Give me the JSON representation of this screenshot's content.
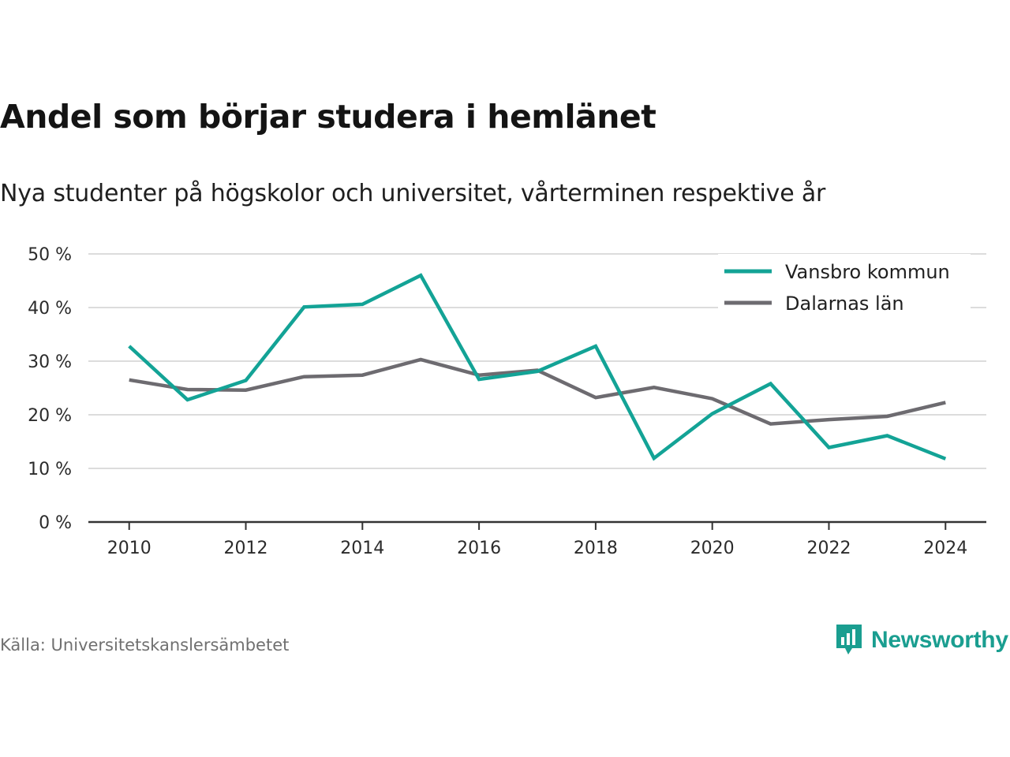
{
  "header": {
    "title": "Andel som börjar studera i hemlänet",
    "subtitle": "Nya studenter på högskolor och universitet, vårterminen respektive år"
  },
  "footer": {
    "source": "Källa: Universitetskanslersämbetet",
    "brand": "Newsworthy"
  },
  "colors": {
    "vansbro": "#13a396",
    "dalarna": "#6d6b70",
    "grid": "#dcdcdc",
    "axis": "#333333",
    "brand": "#1a9e90"
  },
  "chart_data": {
    "type": "line",
    "title": "Andel som börjar studera i hemlänet",
    "subtitle": "Nya studenter på högskolor och universitet, vårterminen respektive år",
    "x": [
      2010,
      2011,
      2012,
      2013,
      2014,
      2015,
      2016,
      2017,
      2018,
      2019,
      2020,
      2021,
      2022,
      2023,
      2024
    ],
    "x_ticks": [
      "2010",
      "2012",
      "2014",
      "2016",
      "2018",
      "2020",
      "2022",
      "2024"
    ],
    "y_ticks": [
      "0 %",
      "10 %",
      "20 %",
      "30 %",
      "40 %",
      "50 %"
    ],
    "ylim": [
      0,
      50
    ],
    "xlim": [
      2009.3,
      2024.7
    ],
    "grid": true,
    "legend_position": "top-right",
    "series": [
      {
        "name": "Vansbro kommun",
        "color": "#13a396",
        "values": [
          32.8,
          22.8,
          26.4,
          40.1,
          40.6,
          46.0,
          26.6,
          28.1,
          32.8,
          11.9,
          20.2,
          25.8,
          13.9,
          16.1,
          11.8
        ]
      },
      {
        "name": "Dalarnas län",
        "color": "#6d6b70",
        "values": [
          26.5,
          24.7,
          24.6,
          27.1,
          27.4,
          30.3,
          27.4,
          28.3,
          23.2,
          25.1,
          23.0,
          18.3,
          19.1,
          19.7,
          22.3
        ]
      }
    ]
  }
}
